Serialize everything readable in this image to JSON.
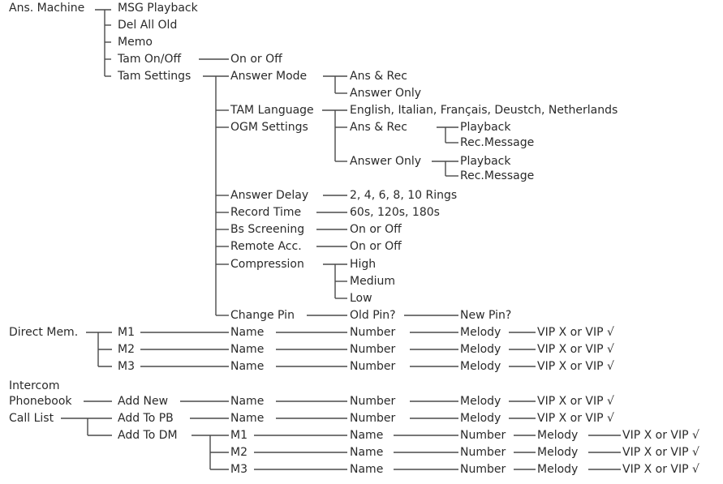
{
  "ans_machine": {
    "label": "Ans. Machine",
    "msg_playback": "MSG Playback",
    "del_all_old": "Del All Old",
    "memo": "Memo",
    "tam_onoff": "Tam On/Off",
    "tam_onoff_value": "On or Off",
    "tam_settings": "Tam Settings"
  },
  "tam_settings": {
    "answer_mode": "Answer Mode",
    "answer_mode_options": [
      "Ans & Rec",
      "Answer Only"
    ],
    "tam_language": "TAM Language",
    "tam_language_options": "English, Italian, Français, Deustch, Netherlands",
    "ogm_settings": "OGM Settings",
    "ogm_modes": [
      "Ans & Rec",
      "Answer Only"
    ],
    "ogm_actions": [
      "Playback",
      "Rec.Message"
    ],
    "answer_delay": "Answer Delay",
    "answer_delay_options": "2, 4, 6, 8, 10 Rings",
    "record_time": "Record Time",
    "record_time_options": "60s, 120s, 180s",
    "bs_screening": "Bs Screening",
    "bs_screening_value": "On or Off",
    "remote_acc": "Remote Acc.",
    "remote_acc_value": "On or Off",
    "compression": "Compression",
    "compression_options": [
      "High",
      "Medium",
      "Low"
    ],
    "change_pin": "Change Pin",
    "old_pin": "Old Pin?",
    "new_pin": "New Pin?"
  },
  "direct_mem": {
    "label": "Direct Mem.",
    "entries": [
      "M1",
      "M2",
      "M3"
    ],
    "fields": [
      "Name",
      "Number",
      "Melody",
      "VIP X or VIP √"
    ]
  },
  "intercom": "Intercom",
  "phonebook": {
    "label": "Phonebook",
    "add_new": "Add New"
  },
  "call_list": {
    "label": "Call List",
    "add_to_pb": "Add To PB",
    "add_to_dm": "Add To DM",
    "dm_entries": [
      "M1",
      "M2",
      "M3"
    ]
  },
  "colors": {
    "text": "#2a2a2a",
    "lines": "#4a4a4a"
  }
}
